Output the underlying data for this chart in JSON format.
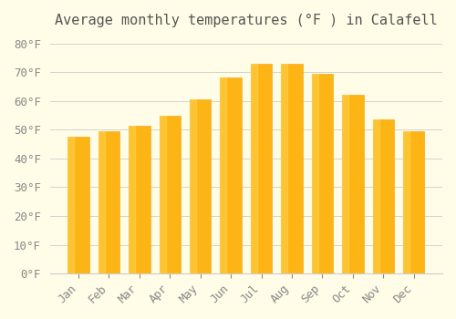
{
  "title": "Average monthly temperatures (°F ) in Calafell",
  "months": [
    "Jan",
    "Feb",
    "Mar",
    "Apr",
    "May",
    "Jun",
    "Jul",
    "Aug",
    "Sep",
    "Oct",
    "Nov",
    "Dec"
  ],
  "values": [
    47.5,
    49.5,
    51.5,
    55.0,
    60.5,
    68.0,
    73.0,
    73.0,
    69.5,
    62.0,
    53.5,
    49.5
  ],
  "bar_color_face": "#FDB515",
  "bar_color_edge": "#F5A623",
  "background_color": "#FFFDE7",
  "grid_color": "#CCCCCC",
  "ylim": [
    0,
    83
  ],
  "ytick_values": [
    0,
    10,
    20,
    30,
    40,
    50,
    60,
    70,
    80
  ],
  "title_fontsize": 11,
  "tick_fontsize": 9,
  "title_color": "#555555",
  "tick_color": "#888888",
  "font_family": "monospace"
}
